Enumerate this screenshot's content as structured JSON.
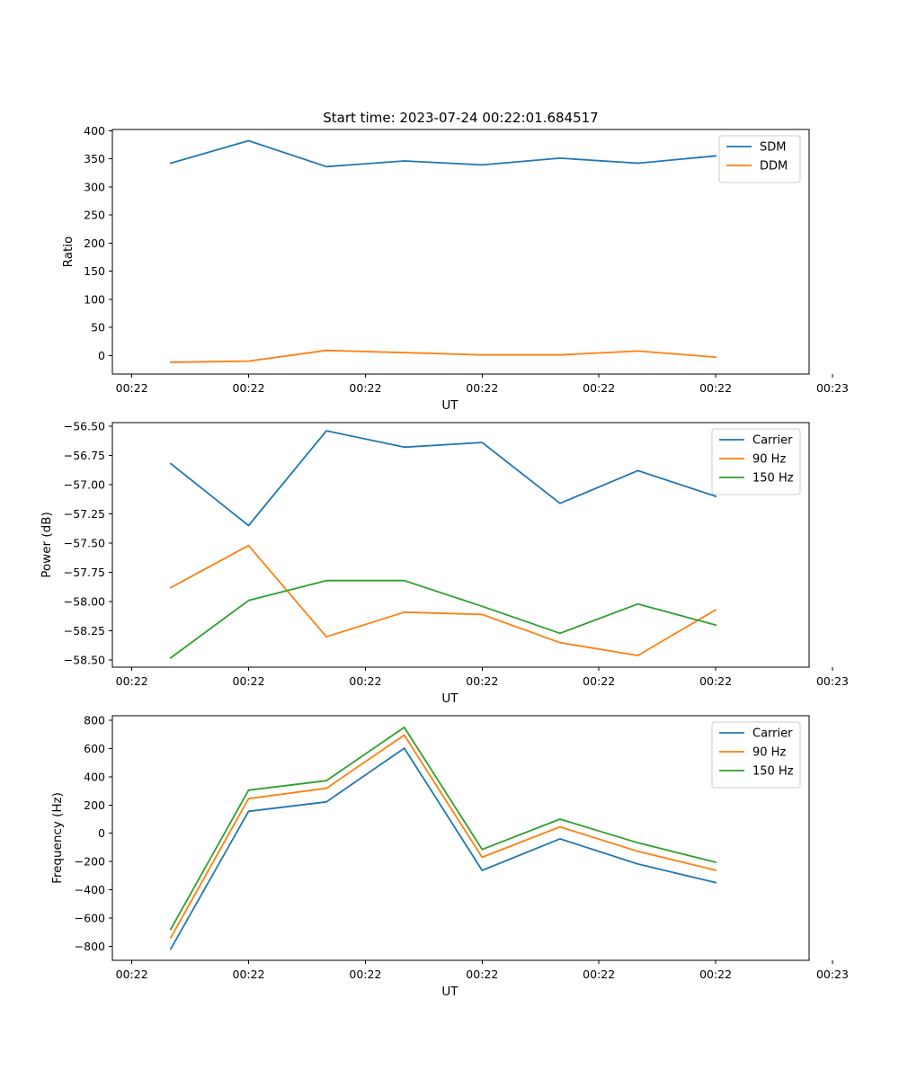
{
  "figure_title": "Start time: 2023-07-24 00:22:01.684517",
  "chart_data": [
    {
      "type": "line",
      "title": "Start time: 2023-07-24 00:22:01.684517",
      "xlabel": "UT",
      "ylabel": "Ratio",
      "x": [
        1,
        2,
        3,
        4,
        5,
        6,
        7,
        8
      ],
      "xlim": [
        0.25,
        9.2
      ],
      "xticks": [
        0.5,
        2,
        3.5,
        5,
        6.5,
        8,
        9.5
      ],
      "xtick_labels": [
        "00:22",
        "00:22",
        "00:22",
        "00:22",
        "00:22",
        "00:22",
        "00:23"
      ],
      "ylim": [
        -33,
        402
      ],
      "yticks": [
        0,
        50,
        100,
        150,
        200,
        250,
        300,
        350,
        400
      ],
      "legend": "top-right",
      "grid": false,
      "series": [
        {
          "name": "SDM",
          "color": "#1f77b4",
          "values": [
            342,
            382,
            336,
            346,
            339,
            351,
            342,
            355
          ]
        },
        {
          "name": "DDM",
          "color": "#ff7f0e",
          "values": [
            -12,
            -10,
            9,
            5,
            1,
            1,
            8,
            -3
          ]
        }
      ]
    },
    {
      "type": "line",
      "xlabel": "UT",
      "ylabel": "Power (dB)",
      "x": [
        1,
        2,
        3,
        4,
        5,
        6,
        7,
        8
      ],
      "xlim": [
        0.25,
        9.2
      ],
      "xticks": [
        0.5,
        2,
        3.5,
        5,
        6.5,
        8,
        9.5
      ],
      "xtick_labels": [
        "00:22",
        "00:22",
        "00:22",
        "00:22",
        "00:22",
        "00:22",
        "00:23"
      ],
      "ylim": [
        -58.56,
        -56.47
      ],
      "yticks": [
        -58.5,
        -58.25,
        -58.0,
        -57.75,
        -57.5,
        -57.25,
        -57.0,
        -56.75,
        -56.5
      ],
      "ytick_labels": [
        "−58.50",
        "−58.25",
        "−58.00",
        "−57.75",
        "−57.50",
        "−57.25",
        "−57.00",
        "−56.75",
        "−56.50"
      ],
      "legend": "top-right",
      "grid": false,
      "series": [
        {
          "name": "Carrier",
          "color": "#1f77b4",
          "values": [
            -56.82,
            -57.35,
            -56.54,
            -56.68,
            -56.64,
            -57.16,
            -56.88,
            -57.1
          ]
        },
        {
          "name": "90 Hz",
          "color": "#ff7f0e",
          "values": [
            -57.88,
            -57.52,
            -58.3,
            -58.09,
            -58.11,
            -58.35,
            -58.46,
            -58.07
          ]
        },
        {
          "name": "150 Hz",
          "color": "#2ca02c",
          "values": [
            -58.48,
            -57.99,
            -57.82,
            -57.82,
            -58.04,
            -58.27,
            -58.02,
            -58.2
          ]
        }
      ]
    },
    {
      "type": "line",
      "xlabel": "UT",
      "ylabel": "Frequency (Hz)",
      "x": [
        1,
        2,
        3,
        4,
        5,
        6,
        7,
        8
      ],
      "xlim": [
        0.25,
        9.2
      ],
      "xticks": [
        0.5,
        2,
        3.5,
        5,
        6.5,
        8,
        9.5
      ],
      "xtick_labels": [
        "00:22",
        "00:22",
        "00:22",
        "00:22",
        "00:22",
        "00:22",
        "00:23"
      ],
      "ylim": [
        -900,
        832
      ],
      "yticks": [
        -800,
        -600,
        -400,
        -200,
        0,
        200,
        400,
        600,
        800
      ],
      "ytick_labels": [
        "−800",
        "−600",
        "−400",
        "−200",
        "0",
        "200",
        "400",
        "600",
        "800"
      ],
      "legend": "top-right",
      "grid": false,
      "series": [
        {
          "name": "Carrier",
          "color": "#1f77b4",
          "values": [
            -820,
            155,
            222,
            602,
            -263,
            -40,
            -218,
            -350
          ]
        },
        {
          "name": "90 Hz",
          "color": "#ff7f0e",
          "values": [
            -740,
            245,
            318,
            695,
            -170,
            45,
            -128,
            -262
          ]
        },
        {
          "name": "150 Hz",
          "color": "#2ca02c",
          "values": [
            -680,
            305,
            372,
            750,
            -115,
            100,
            -68,
            -205
          ]
        }
      ]
    }
  ]
}
